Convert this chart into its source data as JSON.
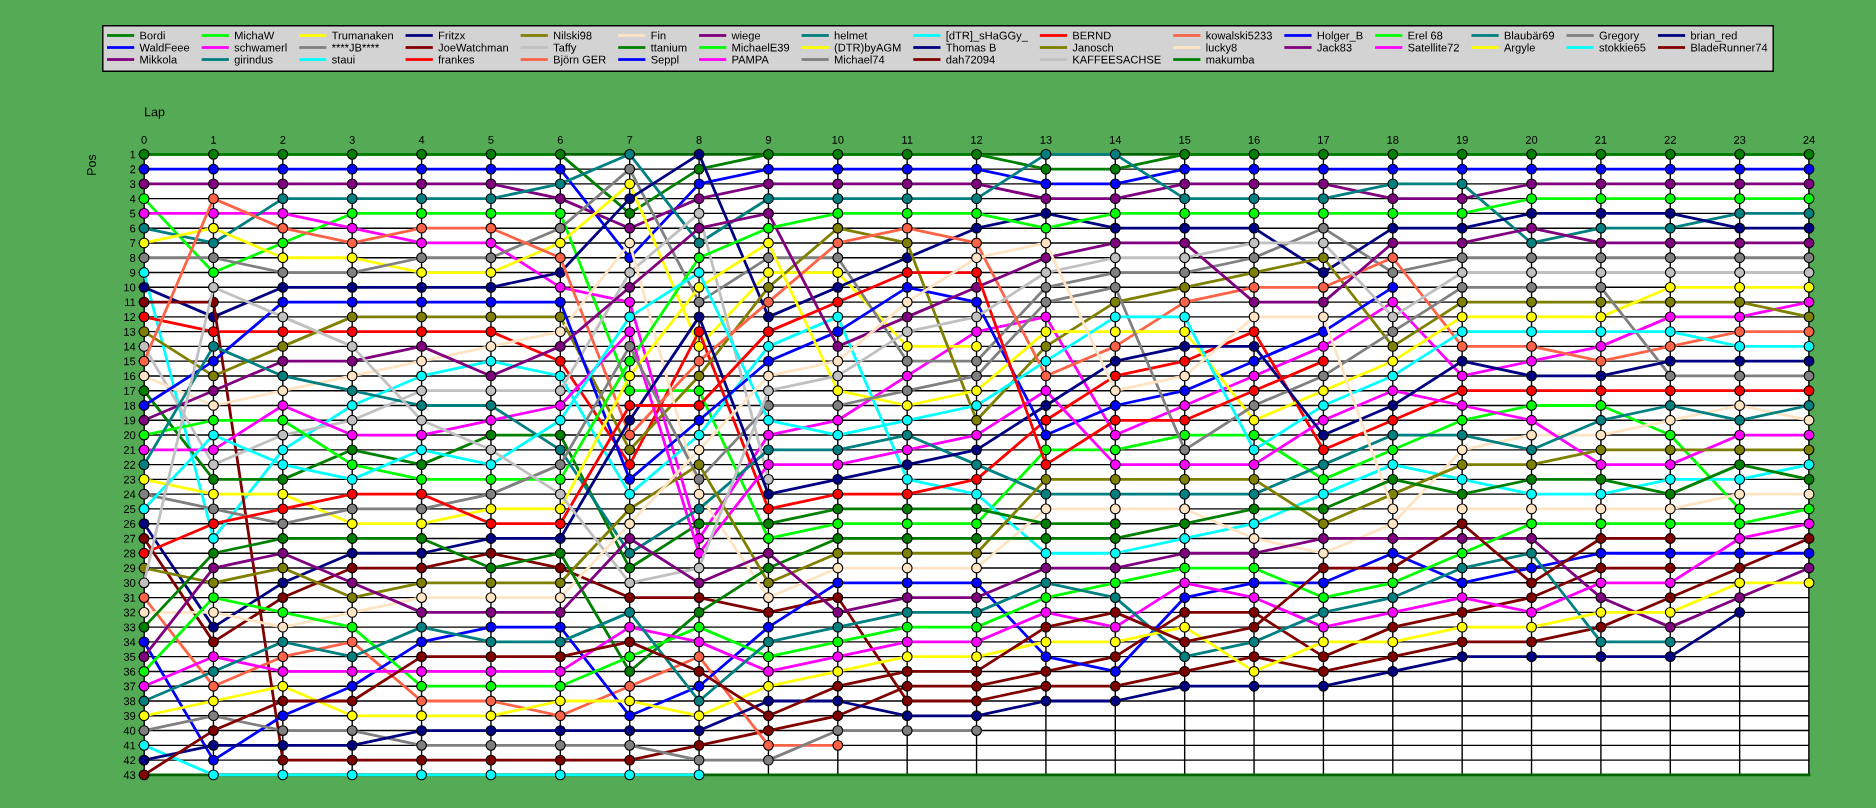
{
  "chart_data": {
    "type": "line",
    "xlabel": "Lap",
    "ylabel": "Pos",
    "x": [
      0,
      1,
      2,
      3,
      4,
      5,
      6,
      7,
      8,
      9,
      10,
      11,
      12,
      13,
      14,
      15,
      16,
      17,
      18,
      19,
      20,
      21,
      22,
      23,
      24
    ],
    "xlim": [
      0,
      24
    ],
    "xticks": [
      0,
      1,
      2,
      3,
      4,
      5,
      6,
      7,
      8,
      9,
      10,
      11,
      12,
      13,
      14,
      15,
      16,
      17,
      18,
      19,
      20,
      21,
      22,
      23,
      24
    ],
    "ylim": [
      43,
      1
    ],
    "yticks": [
      1,
      2,
      3,
      4,
      5,
      6,
      7,
      8,
      9,
      10,
      11,
      12,
      13,
      14,
      15,
      16,
      17,
      18,
      19,
      20,
      21,
      22,
      23,
      24,
      25,
      26,
      27,
      28,
      29,
      30,
      31,
      32,
      33,
      34,
      35,
      36,
      37,
      38,
      39,
      40,
      41,
      42,
      43
    ],
    "grid": true,
    "legend": "top",
    "marker": "circle",
    "line_style": "solid",
    "series": [
      {
        "name": "Bordi",
        "color": "#008000",
        "values": [
          1,
          1,
          1,
          1,
          1,
          1,
          1,
          5,
          2,
          1,
          1,
          1,
          1,
          2,
          2,
          1,
          1,
          1,
          1,
          1,
          1,
          1,
          1,
          1,
          1
        ]
      },
      {
        "name": "WaldFeee",
        "color": "#0000ff",
        "values": [
          2,
          2,
          2,
          2,
          2,
          2,
          2,
          8,
          3,
          2,
          2,
          2,
          2,
          3,
          3,
          2,
          2,
          2,
          2,
          2,
          2,
          2,
          2,
          2,
          2
        ]
      },
      {
        "name": "Mikkola",
        "color": "#800080",
        "values": [
          3,
          3,
          3,
          3,
          3,
          3,
          4,
          6,
          4,
          3,
          3,
          3,
          3,
          4,
          4,
          3,
          3,
          3,
          4,
          4,
          3,
          3,
          3,
          3,
          3
        ]
      },
      {
        "name": "MichaW",
        "color": "#00ff00",
        "values": [
          4,
          9,
          7,
          5,
          5,
          5,
          5,
          17,
          17,
          27,
          26,
          26,
          26,
          21,
          21,
          20,
          20,
          23,
          21,
          19,
          18,
          18,
          20,
          25,
          null
        ]
      },
      {
        "name": "schwamerl",
        "color": "#ff00ff",
        "values": [
          5,
          5,
          5,
          6,
          7,
          7,
          10,
          11,
          27,
          20,
          19,
          16,
          13,
          12,
          20,
          18,
          16,
          14,
          11,
          16,
          15,
          14,
          12,
          12,
          11
        ]
      },
      {
        "name": "girindus",
        "color": "#008080",
        "values": [
          6,
          7,
          4,
          4,
          4,
          4,
          3,
          1,
          7,
          4,
          4,
          4,
          4,
          1,
          1,
          4,
          4,
          4,
          3,
          3,
          7,
          6,
          6,
          5,
          5
        ]
      },
      {
        "name": "Trumanaken",
        "color": "#ffff00",
        "values": [
          7,
          6,
          8,
          8,
          9,
          9,
          7,
          3,
          14,
          9,
          9,
          14,
          14,
          null,
          null,
          null,
          null,
          null,
          null,
          null,
          null,
          null,
          null,
          null,
          null
        ]
      },
      {
        "name": "****JB****",
        "color": "#808080",
        "values": [
          8,
          8,
          9,
          9,
          8,
          8,
          6,
          2,
          11,
          8,
          8,
          15,
          15,
          10,
          9,
          9,
          8,
          6,
          9,
          8,
          8,
          8,
          8,
          8,
          8
        ]
      },
      {
        "name": "staui",
        "color": "#00ffff",
        "values": [
          9,
          27,
          21,
          18,
          16,
          15,
          16,
          24,
          20,
          14,
          12,
          23,
          24,
          28,
          28,
          27,
          26,
          24,
          22,
          23,
          24,
          24,
          23,
          23,
          22
        ]
      },
      {
        "name": "Fritzx",
        "color": "#000080",
        "values": [
          10,
          12,
          10,
          10,
          10,
          10,
          9,
          4,
          1,
          12,
          10,
          8,
          6,
          5,
          6,
          6,
          6,
          9,
          6,
          6,
          5,
          5,
          5,
          6,
          6
        ]
      },
      {
        "name": "JoeWatchman",
        "color": "#800000",
        "values": [
          11,
          11,
          42,
          42,
          42,
          42,
          42,
          42,
          41,
          40,
          39,
          37,
          37,
          36,
          35,
          32,
          32,
          35,
          33,
          32,
          31,
          29,
          29,
          null,
          null
        ]
      },
      {
        "name": "frankes",
        "color": "#ff0000",
        "values": [
          12,
          13,
          13,
          13,
          13,
          13,
          15,
          22,
          13,
          25,
          24,
          24,
          23,
          19,
          16,
          15,
          13,
          21,
          19,
          17,
          17,
          17,
          17,
          17,
          17
        ]
      },
      {
        "name": "Nilski98",
        "color": "#808000",
        "values": [
          13,
          16,
          14,
          12,
          12,
          12,
          12,
          21,
          16,
          10,
          6,
          7,
          19,
          14,
          11,
          10,
          9,
          8,
          14,
          11,
          11,
          11,
          11,
          11,
          12
        ]
      },
      {
        "name": "Taffy",
        "color": "#c0c0c0",
        "values": [
          14,
          22,
          20,
          19,
          17,
          17,
          17,
          9,
          5,
          23,
          null,
          null,
          null,
          null,
          null,
          null,
          null,
          null,
          null,
          null,
          null,
          null,
          null,
          null,
          null
        ]
      },
      {
        "name": "Björn GER",
        "color": "#ff6347",
        "values": [
          15,
          4,
          6,
          7,
          6,
          6,
          8,
          20,
          15,
          11,
          7,
          6,
          7,
          16,
          14,
          11,
          10,
          10,
          8,
          14,
          14,
          15,
          14,
          13,
          13
        ]
      },
      {
        "name": "Fin",
        "color": "#ffe4c4",
        "values": [
          16,
          18,
          17,
          16,
          15,
          14,
          13,
          7,
          24,
          31,
          29,
          29,
          29,
          25,
          25,
          25,
          27,
          28,
          26,
          21,
          20,
          20,
          19,
          18,
          19
        ]
      },
      {
        "name": "ttanium",
        "color": "#008000",
        "values": [
          17,
          23,
          23,
          21,
          22,
          20,
          20,
          29,
          26,
          26,
          25,
          25,
          25,
          26,
          26,
          null,
          null,
          null,
          null,
          null,
          null,
          null,
          null,
          null,
          null
        ]
      },
      {
        "name": "Seppl",
        "color": "#0000ff",
        "values": [
          18,
          15,
          11,
          11,
          11,
          11,
          11,
          23,
          19,
          15,
          13,
          10,
          11,
          20,
          18,
          17,
          15,
          13,
          10,
          null,
          null,
          null,
          null,
          null,
          null
        ]
      },
      {
        "name": "wiege",
        "color": "#800080",
        "values": [
          19,
          17,
          15,
          15,
          14,
          16,
          14,
          10,
          6,
          5,
          14,
          12,
          10,
          8,
          7,
          7,
          11,
          11,
          7,
          7,
          6,
          7,
          7,
          7,
          7
        ]
      },
      {
        "name": "MichaelE39",
        "color": "#00ff00",
        "values": [
          20,
          19,
          19,
          22,
          23,
          23,
          23,
          15,
          8,
          6,
          5,
          5,
          5,
          6,
          5,
          5,
          5,
          5,
          5,
          5,
          4,
          4,
          4,
          4,
          4
        ]
      },
      {
        "name": "PAMPA",
        "color": "#ff00ff",
        "values": [
          21,
          21,
          18,
          20,
          20,
          19,
          18,
          13,
          28,
          22,
          22,
          21,
          20,
          17,
          22,
          22,
          22,
          19,
          17,
          18,
          19,
          22,
          22,
          20,
          20
        ]
      },
      {
        "name": "helmet",
        "color": "#008080",
        "values": [
          22,
          14,
          16,
          17,
          18,
          18,
          21,
          28,
          25,
          21,
          21,
          20,
          22,
          24,
          24,
          24,
          24,
          22,
          20,
          20,
          21,
          19,
          18,
          19,
          18
        ]
      },
      {
        "name": "(DTR)byAGM",
        "color": "#ffff00",
        "values": [
          23,
          24,
          24,
          26,
          26,
          25,
          25,
          16,
          10,
          7,
          17,
          18,
          17,
          13,
          13,
          13,
          19,
          17,
          15,
          12,
          12,
          12,
          10,
          10,
          10
        ]
      },
      {
        "name": "Michael74",
        "color": "#808080",
        "values": [
          24,
          25,
          26,
          25,
          25,
          24,
          22,
          14,
          23,
          18,
          18,
          17,
          16,
          11,
          10,
          21,
          18,
          16,
          13,
          10,
          10,
          10,
          16,
          16,
          16
        ]
      },
      {
        "name": "[dTR]_sHaGGy_",
        "color": "#00ffff",
        "values": [
          25,
          20,
          22,
          23,
          21,
          22,
          19,
          12,
          9,
          19,
          20,
          19,
          18,
          15,
          12,
          12,
          21,
          18,
          16,
          13,
          13,
          13,
          13,
          14,
          14
        ]
      },
      {
        "name": "Thomas B",
        "color": "#000080",
        "values": [
          26,
          33,
          30,
          28,
          28,
          27,
          27,
          19,
          12,
          24,
          23,
          22,
          21,
          18,
          15,
          14,
          14,
          20,
          18,
          15,
          16,
          16,
          15,
          15,
          15
        ]
      },
      {
        "name": "dah72094",
        "color": "#800000",
        "values": [
          27,
          34,
          31,
          29,
          29,
          28,
          29,
          31,
          31,
          32,
          31,
          38,
          38,
          37,
          37,
          36,
          35,
          36,
          35,
          34,
          34,
          33,
          31,
          29,
          27
        ]
      },
      {
        "name": "BERND",
        "color": "#ff0000",
        "values": [
          28,
          26,
          25,
          24,
          24,
          26,
          26,
          18,
          18,
          13,
          11,
          9,
          9,
          22,
          19,
          19,
          17,
          15,
          null,
          null,
          null,
          null,
          null,
          null,
          null
        ]
      },
      {
        "name": "Janosch",
        "color": "#808000",
        "values": [
          29,
          30,
          29,
          31,
          30,
          30,
          30,
          25,
          22,
          30,
          28,
          28,
          28,
          23,
          23,
          23,
          23,
          26,
          24,
          22,
          22,
          21,
          21,
          21,
          21
        ]
      },
      {
        "name": "KAFFEESACHSE",
        "color": "#c0c0c0",
        "values": [
          30,
          10,
          12,
          14,
          19,
          21,
          24,
          30,
          29,
          17,
          16,
          13,
          12,
          9,
          8,
          8,
          7,
          7,
          12,
          9,
          9,
          9,
          9,
          9,
          9
        ]
      },
      {
        "name": "kowalski5233",
        "color": "#ff6347",
        "values": [
          31,
          37,
          35,
          34,
          38,
          38,
          39,
          37,
          35,
          41,
          41,
          null,
          null,
          null,
          null,
          null,
          null,
          null,
          null,
          null,
          null,
          null,
          null,
          null,
          null
        ]
      },
      {
        "name": "lucky8",
        "color": "#ffe4c4",
        "values": [
          32,
          32,
          33,
          32,
          31,
          31,
          31,
          26,
          21,
          16,
          15,
          11,
          8,
          7,
          17,
          16,
          12,
          12,
          25,
          25,
          25,
          25,
          25,
          24,
          24
        ]
      },
      {
        "name": "makumba",
        "color": "#008000",
        "values": [
          33,
          28,
          27,
          27,
          27,
          29,
          28,
          36,
          32,
          29,
          27,
          27,
          27,
          27,
          27,
          26,
          25,
          25,
          23,
          24,
          23,
          23,
          24,
          22,
          23
        ]
      },
      {
        "name": "Holger_B",
        "color": "#0000ff",
        "values": [
          34,
          42,
          39,
          37,
          34,
          33,
          33,
          39,
          37,
          33,
          30,
          30,
          30,
          35,
          36,
          31,
          30,
          30,
          28,
          30,
          29,
          28,
          28,
          28,
          28
        ]
      },
      {
        "name": "Jack83",
        "color": "#800080",
        "values": [
          35,
          29,
          28,
          30,
          32,
          32,
          32,
          27,
          30,
          28,
          32,
          31,
          31,
          29,
          29,
          28,
          28,
          27,
          27,
          27,
          27,
          31,
          33,
          31,
          29
        ]
      },
      {
        "name": "Erel 68",
        "color": "#00ff00",
        "values": [
          36,
          31,
          32,
          33,
          37,
          37,
          37,
          35,
          33,
          35,
          34,
          33,
          33,
          31,
          30,
          29,
          29,
          31,
          30,
          28,
          26,
          26,
          26,
          26,
          25
        ]
      },
      {
        "name": "Satellite72",
        "color": "#ff00ff",
        "values": [
          37,
          35,
          36,
          36,
          36,
          36,
          36,
          33,
          34,
          36,
          35,
          34,
          34,
          32,
          33,
          30,
          31,
          33,
          32,
          31,
          32,
          30,
          30,
          27,
          26
        ]
      },
      {
        "name": "Blaubär69",
        "color": "#008080",
        "values": [
          38,
          36,
          34,
          35,
          33,
          34,
          34,
          32,
          38,
          34,
          33,
          32,
          32,
          30,
          31,
          35,
          34,
          32,
          31,
          29,
          28,
          34,
          34,
          null,
          null
        ]
      },
      {
        "name": "Argyle",
        "color": "#ffff00",
        "values": [
          39,
          38,
          37,
          39,
          39,
          39,
          38,
          38,
          39,
          37,
          36,
          35,
          35,
          34,
          34,
          33,
          36,
          34,
          34,
          33,
          33,
          32,
          32,
          30,
          30
        ]
      },
      {
        "name": "Gregory",
        "color": "#808080",
        "values": [
          40,
          39,
          40,
          40,
          41,
          41,
          41,
          41,
          42,
          42,
          40,
          40,
          40,
          null,
          null,
          null,
          null,
          null,
          null,
          null,
          null,
          null,
          null,
          null,
          null
        ]
      },
      {
        "name": "stokkie65",
        "color": "#00ffff",
        "values": [
          41,
          43,
          43,
          43,
          43,
          43,
          43,
          43,
          43,
          null,
          null,
          null,
          null,
          null,
          null,
          null,
          null,
          null,
          null,
          null,
          null,
          null,
          null,
          null,
          null
        ]
      },
      {
        "name": "brian_red",
        "color": "#000080",
        "values": [
          42,
          41,
          41,
          41,
          40,
          40,
          40,
          40,
          40,
          38,
          38,
          39,
          39,
          38,
          38,
          37,
          37,
          37,
          36,
          35,
          35,
          35,
          35,
          32,
          null
        ]
      },
      {
        "name": "BladeRunner74",
        "color": "#800000",
        "values": [
          43,
          40,
          38,
          38,
          35,
          35,
          35,
          34,
          36,
          39,
          37,
          36,
          36,
          33,
          32,
          34,
          33,
          29,
          29,
          26,
          30,
          27,
          27,
          null,
          null
        ]
      }
    ]
  }
}
